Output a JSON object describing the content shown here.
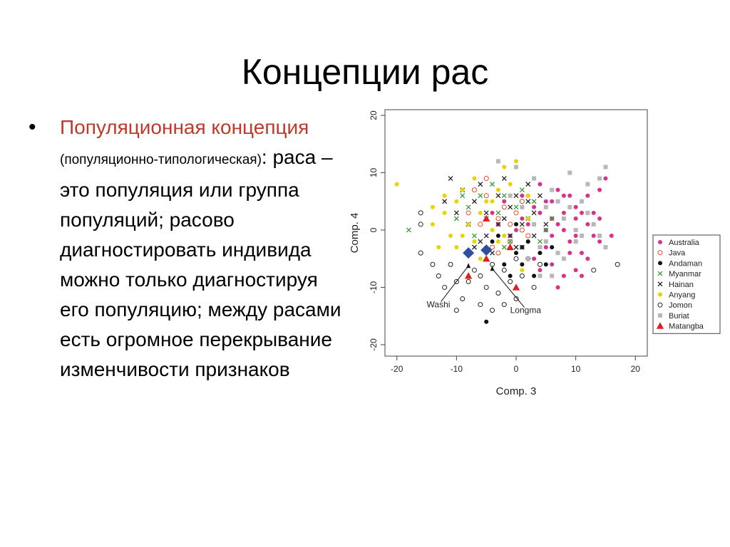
{
  "slide": {
    "title": "Концепции рас",
    "bullet": {
      "lead": "Популяционная концепция",
      "aside": "(популяционно-типологическая)",
      "colon": ":",
      "body": "раса – это популяция или группа популяций; расово диагностировать индивида можно только диагностируя его популяцию; между расами есть огромное перекрывание изменчивости признаков"
    }
  },
  "chart_data": {
    "type": "scatter",
    "xlabel": "Comp. 3",
    "ylabel": "Comp. 4",
    "xlim": [
      -22,
      22
    ],
    "ylim": [
      -22,
      21
    ],
    "x_ticks": [
      -20,
      -10,
      0,
      10,
      20
    ],
    "y_ticks": [
      -20,
      -10,
      0,
      10,
      20
    ],
    "legend_position": "right",
    "annotations": [
      {
        "text": "Washi",
        "x": -15,
        "y": -13.5,
        "points_to": [
          -8,
          -5.5
        ]
      },
      {
        "text": "Longma",
        "x": -1,
        "y": -14.5,
        "points_to": [
          -4,
          -6
        ]
      }
    ],
    "series": [
      {
        "name": "Australia",
        "color": "#d6338b",
        "marker": "filled-circle",
        "points": [
          [
            2,
            6
          ],
          [
            4,
            8
          ],
          [
            6,
            5
          ],
          [
            8,
            3
          ],
          [
            10,
            2
          ],
          [
            12,
            6
          ],
          [
            14,
            7
          ],
          [
            15,
            9
          ],
          [
            13,
            -1
          ],
          [
            11,
            -4
          ],
          [
            9,
            -2
          ],
          [
            7,
            1
          ],
          [
            5,
            -3
          ],
          [
            3,
            4
          ],
          [
            1,
            2
          ],
          [
            -1,
            -1
          ],
          [
            -2,
            5
          ],
          [
            6,
            -6
          ],
          [
            8,
            -8
          ],
          [
            10,
            -7
          ],
          [
            12,
            -5
          ],
          [
            14,
            -2
          ],
          [
            3,
            -5
          ],
          [
            5,
            0
          ],
          [
            9,
            6
          ],
          [
            11,
            3
          ],
          [
            2,
            -2
          ],
          [
            4,
            3
          ],
          [
            7,
            7
          ],
          [
            13,
            3
          ],
          [
            0,
            0
          ],
          [
            2,
            1
          ],
          [
            6,
            2
          ],
          [
            8,
            0
          ],
          [
            10,
            -1
          ],
          [
            12,
            1
          ],
          [
            14,
            2
          ],
          [
            16,
            -1
          ],
          [
            4,
            -7
          ],
          [
            7,
            -10
          ],
          [
            9,
            -4
          ],
          [
            11,
            -8
          ],
          [
            3,
            9
          ],
          [
            1,
            6
          ],
          [
            -3,
            1
          ],
          [
            -4,
            3
          ],
          [
            5,
            5
          ],
          [
            8,
            6
          ],
          [
            10,
            4
          ],
          [
            6,
            -1
          ]
        ]
      },
      {
        "name": "Java",
        "color": "#e04a2a",
        "marker": "open-circle",
        "points": [
          [
            -7,
            7
          ],
          [
            -5,
            9
          ],
          [
            -3,
            2
          ],
          [
            -1,
            -2
          ],
          [
            1,
            0
          ],
          [
            -6,
            1
          ],
          [
            -4,
            -3
          ],
          [
            -2,
            4
          ],
          [
            0,
            3
          ],
          [
            2,
            -1
          ],
          [
            -8,
            3
          ],
          [
            -5,
            6
          ],
          [
            -3,
            -4
          ],
          [
            -1,
            1
          ],
          [
            1,
            5
          ]
        ]
      },
      {
        "name": "Andaman",
        "color": "#111111",
        "marker": "filled-circle",
        "points": [
          [
            -5,
            -16
          ],
          [
            -2,
            -6
          ],
          [
            0,
            -4
          ],
          [
            2,
            -2
          ],
          [
            4,
            -4
          ],
          [
            6,
            -3
          ],
          [
            -1,
            -8
          ],
          [
            1,
            -6
          ],
          [
            3,
            -8
          ],
          [
            -4,
            -2
          ],
          [
            2,
            2
          ],
          [
            0,
            1
          ],
          [
            5,
            -6
          ],
          [
            -3,
            -1
          ],
          [
            1,
            -3
          ]
        ]
      },
      {
        "name": "Myanmar",
        "color": "#3a9a3a",
        "marker": "x",
        "points": [
          [
            -18,
            0
          ],
          [
            -10,
            2
          ],
          [
            -8,
            4
          ],
          [
            -6,
            6
          ],
          [
            -4,
            8
          ],
          [
            -2,
            6
          ],
          [
            0,
            4
          ],
          [
            2,
            2
          ],
          [
            4,
            -2
          ],
          [
            -7,
            -1
          ],
          [
            -5,
            2
          ],
          [
            -3,
            3
          ],
          [
            -1,
            -2
          ],
          [
            1,
            7
          ],
          [
            3,
            5
          ],
          [
            5,
            0
          ],
          [
            -9,
            6
          ],
          [
            -2,
            -3
          ],
          [
            6,
            2
          ]
        ]
      },
      {
        "name": "Hainan",
        "color": "#222222",
        "marker": "x",
        "points": [
          [
            -11,
            9
          ],
          [
            -9,
            7
          ],
          [
            -7,
            5
          ],
          [
            -5,
            3
          ],
          [
            -3,
            1
          ],
          [
            -1,
            -1
          ],
          [
            1,
            1
          ],
          [
            3,
            3
          ],
          [
            5,
            1
          ],
          [
            -8,
            1
          ],
          [
            -6,
            -2
          ],
          [
            -4,
            -4
          ],
          [
            -2,
            2
          ],
          [
            0,
            6
          ],
          [
            2,
            8
          ],
          [
            -10,
            3
          ],
          [
            -6,
            8
          ],
          [
            -3,
            6
          ],
          [
            -1,
            4
          ],
          [
            1,
            -3
          ],
          [
            3,
            -1
          ],
          [
            -5,
            -1
          ],
          [
            -7,
            -3
          ],
          [
            4,
            6
          ],
          [
            -12,
            5
          ],
          [
            -2,
            9
          ],
          [
            0,
            -3
          ],
          [
            2,
            5
          ]
        ]
      },
      {
        "name": "Anyang",
        "color": "#e8d400",
        "marker": "filled-circle",
        "points": [
          [
            -20,
            8
          ],
          [
            -14,
            4
          ],
          [
            -12,
            3
          ],
          [
            -13,
            -3
          ],
          [
            -11,
            -1
          ],
          [
            -9,
            7
          ],
          [
            -8,
            1
          ],
          [
            -7,
            9
          ],
          [
            -5,
            5
          ],
          [
            -3,
            -2
          ],
          [
            -1,
            8
          ],
          [
            0,
            12
          ],
          [
            2,
            6
          ],
          [
            -10,
            -3
          ],
          [
            -6,
            -5
          ],
          [
            -4,
            0
          ],
          [
            -2,
            -1
          ],
          [
            -12,
            6
          ],
          [
            -9,
            -1
          ],
          [
            -6,
            3
          ],
          [
            -3,
            7
          ],
          [
            1,
            -7
          ],
          [
            -14,
            1
          ],
          [
            -10,
            5
          ],
          [
            -7,
            -2
          ],
          [
            -4,
            5
          ],
          [
            -2,
            11
          ],
          [
            2,
            2
          ]
        ]
      },
      {
        "name": "Jomon",
        "color": "#222222",
        "marker": "open-circle",
        "points": [
          [
            -16,
            3
          ],
          [
            -16,
            1
          ],
          [
            -16,
            -4
          ],
          [
            -13,
            -8
          ],
          [
            -12,
            -10
          ],
          [
            -11,
            -6
          ],
          [
            -10,
            -14
          ],
          [
            -9,
            -12
          ],
          [
            -8,
            -9
          ],
          [
            -7,
            -7
          ],
          [
            -6,
            -13
          ],
          [
            -5,
            -10
          ],
          [
            -4,
            -14
          ],
          [
            -3,
            -11
          ],
          [
            -2,
            -7
          ],
          [
            -1,
            -9
          ],
          [
            0,
            -12
          ],
          [
            1,
            -8
          ],
          [
            2,
            -5
          ],
          [
            3,
            -10
          ],
          [
            -14,
            -6
          ],
          [
            -8,
            -4
          ],
          [
            -6,
            -8
          ],
          [
            -4,
            -6
          ],
          [
            17,
            -6
          ],
          [
            13,
            -7
          ],
          [
            4,
            -6
          ],
          [
            -10,
            -9
          ],
          [
            -2,
            -13
          ],
          [
            0,
            -5
          ]
        ]
      },
      {
        "name": "Buriat",
        "color": "#b8b8b8",
        "marker": "filled-square",
        "points": [
          [
            -3,
            12
          ],
          [
            0,
            11
          ],
          [
            3,
            9
          ],
          [
            6,
            7
          ],
          [
            9,
            10
          ],
          [
            12,
            8
          ],
          [
            15,
            11
          ],
          [
            14,
            9
          ],
          [
            11,
            5
          ],
          [
            8,
            2
          ],
          [
            5,
            4
          ],
          [
            2,
            -5
          ],
          [
            4,
            -8
          ],
          [
            7,
            -4
          ],
          [
            10,
            -2
          ],
          [
            13,
            1
          ],
          [
            15,
            -3
          ],
          [
            6,
            -8
          ],
          [
            8,
            -5
          ],
          [
            11,
            -1
          ],
          [
            3,
            1
          ],
          [
            5,
            -2
          ],
          [
            9,
            4
          ],
          [
            12,
            3
          ],
          [
            14,
            -1
          ],
          [
            1,
            4
          ],
          [
            -1,
            6
          ],
          [
            7,
            5
          ],
          [
            10,
            0
          ],
          [
            4,
            -3
          ]
        ]
      },
      {
        "name": "Matangba",
        "color": "#e02020",
        "marker": "filled-triangle",
        "points": [
          [
            -8,
            -8
          ],
          [
            -5,
            2
          ],
          [
            -5,
            -5
          ],
          [
            -1,
            -3
          ],
          [
            0,
            -10
          ]
        ]
      }
    ],
    "highlighted": {
      "name": "",
      "color": "#2e4fa0",
      "marker": "filled-diamond",
      "points": [
        [
          -8,
          -4
        ],
        [
          -5,
          -3.5
        ]
      ]
    }
  }
}
